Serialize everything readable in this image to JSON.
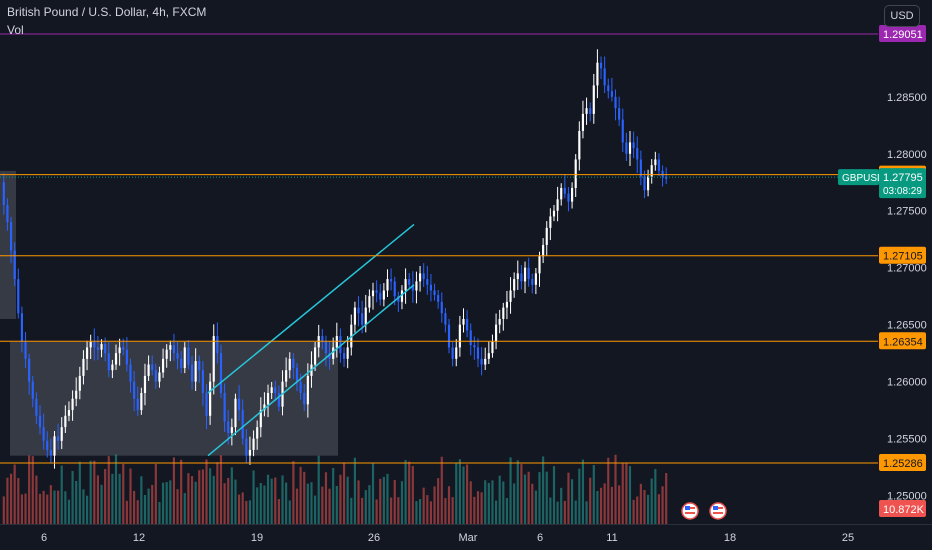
{
  "header": {
    "symbol_title": "British Pound / U.S. Dollar, 4h, FXCM",
    "volume_label": "Vol"
  },
  "currency_button": {
    "label": "USD"
  },
  "colors": {
    "up": "#ffffff",
    "down": "#2962ff",
    "volume_up": "#26a69a",
    "volume_down": "#ef5350",
    "hline_orange": "#ff9800",
    "hline_purple": "#9c27b0",
    "channel": "#26c6da",
    "box": "#787b86",
    "last_price": "#089981",
    "background": "#131722"
  },
  "price_scale_ticks": [
    "1.28500",
    "1.28000",
    "1.27500",
    "1.27000",
    "1.26500",
    "1.26000",
    "1.25500",
    "1.25000"
  ],
  "time_axis_labels": [
    "6",
    "12",
    "19",
    "26",
    "Mar",
    "6",
    "11",
    "18",
    "25"
  ],
  "level_labels": [
    {
      "value": "1.29051",
      "color": "purple"
    },
    {
      "value": "1.27817",
      "color": "orange"
    },
    {
      "value": "1.27105",
      "color": "orange"
    },
    {
      "value": "1.26354",
      "color": "orange"
    },
    {
      "value": "1.25286",
      "color": "orange"
    }
  ],
  "last_price": {
    "symbol": "GBPUSD",
    "value": "1.27795",
    "countdown": "03:08:29"
  },
  "volume_label_value": "10.872K",
  "chart_data": {
    "type": "candlestick",
    "symbol": "GBPUSD",
    "timeframe": "4h",
    "y_range": [
      1.2475,
      1.2935
    ],
    "horizontal_levels": [
      1.29051,
      1.27817,
      1.27105,
      1.26354,
      1.25286
    ],
    "last_price": 1.27795,
    "closes": [
      1.2755,
      1.274,
      1.2715,
      1.269,
      1.266,
      1.2635,
      1.262,
      1.26,
      1.2585,
      1.257,
      1.256,
      1.2548,
      1.254,
      1.2535,
      1.2552,
      1.2548,
      1.256,
      1.257,
      1.2575,
      1.2585,
      1.2592,
      1.2605,
      1.262,
      1.263,
      1.2635,
      1.263,
      1.2628,
      1.2633,
      1.2625,
      1.261,
      1.2615,
      1.2625,
      1.263,
      1.2628,
      1.2615,
      1.26,
      1.2585,
      1.2575,
      1.259,
      1.2605,
      1.2615,
      1.261,
      1.26,
      1.2608,
      1.262,
      1.2628,
      1.2632,
      1.2625,
      1.262,
      1.2612,
      1.263,
      1.2615,
      1.26,
      1.2618,
      1.261,
      1.259,
      1.257,
      1.26,
      1.264,
      1.2625,
      1.259,
      1.2565,
      1.2555,
      1.256,
      1.2585,
      1.2575,
      1.255,
      1.2535,
      1.254,
      1.255,
      1.256,
      1.2575,
      1.258,
      1.259,
      1.2595,
      1.259,
      1.2578,
      1.26,
      1.261,
      1.262,
      1.2612,
      1.26,
      1.259,
      1.258,
      1.2605,
      1.2615,
      1.263,
      1.264,
      1.2635,
      1.2625,
      1.262,
      1.263,
      1.264,
      1.2625,
      1.262,
      1.263,
      1.265,
      1.2665,
      1.266,
      1.265,
      1.2665,
      1.2675,
      1.268,
      1.2678,
      1.2672,
      1.268,
      1.269,
      1.2688,
      1.2675,
      1.267,
      1.268,
      1.269,
      1.2685,
      1.268,
      1.2688,
      1.2695,
      1.269,
      1.2685,
      1.268,
      1.2676,
      1.267,
      1.266,
      1.265,
      1.263,
      1.262,
      1.263,
      1.265,
      1.2655,
      1.2645,
      1.2632,
      1.263,
      1.262,
      1.2615,
      1.262,
      1.2625,
      1.2635,
      1.265,
      1.2655,
      1.2665,
      1.267,
      1.268,
      1.269,
      1.2695,
      1.2688,
      1.27,
      1.269,
      1.2685,
      1.2695,
      1.271,
      1.272,
      1.2735,
      1.2745,
      1.275,
      1.276,
      1.277,
      1.2765,
      1.2758,
      1.277,
      1.2795,
      1.282,
      1.2835,
      1.284,
      1.2835,
      1.286,
      1.288,
      1.2875,
      1.286,
      1.2855,
      1.285,
      1.284,
      1.283,
      1.281,
      1.28,
      1.281,
      1.2805,
      1.2795,
      1.278,
      1.2768,
      1.278,
      1.279,
      1.2795,
      1.2785,
      1.278,
      1.2778
    ]
  }
}
